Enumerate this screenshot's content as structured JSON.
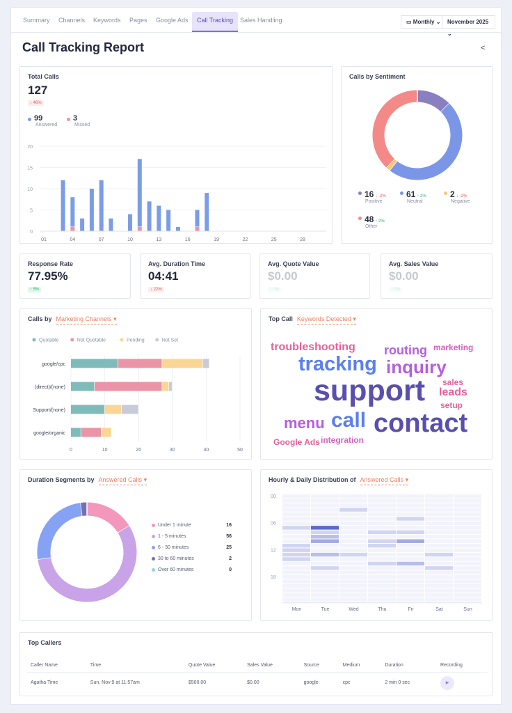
{
  "nav": {
    "tabs": [
      "Summary",
      "Channels",
      "Keywords",
      "Pages",
      "Google Ads",
      "Call Tracking",
      "Sales Handling"
    ],
    "active": 5,
    "period": "Monthly",
    "month": "November 2025"
  },
  "page": {
    "title": "Call Tracking Report"
  },
  "total_calls": {
    "title": "Total Calls",
    "value": "127",
    "change": "↓ 46%",
    "answered": {
      "value": "99",
      "label": "Answered"
    },
    "missed": {
      "value": "3",
      "label": "Missed"
    }
  },
  "sentiment": {
    "title": "Calls by Sentiment",
    "items": [
      {
        "label": "Positive",
        "value": 16,
        "change": "↓ -2%",
        "dir": "down",
        "color": "#8a7fbf"
      },
      {
        "label": "Neutral",
        "value": 61,
        "change": "↑ 2%",
        "dir": "up",
        "color": "#7b96e6"
      },
      {
        "label": "Negative",
        "value": 2,
        "change": "↓ -2%",
        "dir": "down",
        "color": "#f5c97a"
      },
      {
        "label": "Other",
        "value": 48,
        "change": "↑ 2%",
        "dir": "up",
        "color": "#f48a87"
      }
    ]
  },
  "stats": [
    {
      "label": "Response Rate",
      "value": "77.95%",
      "change": "↑ 5%",
      "dir": "up"
    },
    {
      "label": "Avg. Duration Time",
      "value": "04:41",
      "change": "↓ 22%",
      "dir": "down"
    },
    {
      "label": "Avg. Quote Value",
      "value": "$0.00",
      "change": "↑ 0%",
      "dir": "up"
    },
    {
      "label": "Avg. Sales Value",
      "value": "$0.00",
      "change": "↑ 0%",
      "dir": "up"
    }
  ],
  "calls_by": {
    "title": "Calls by",
    "dropdown": "Marketing Channels"
  },
  "top_call": {
    "title": "Top Call",
    "dropdown": "Keywords Detected",
    "words": [
      {
        "text": "troubleshooting",
        "weight": 2,
        "color": "#e8609a"
      },
      {
        "text": "routing",
        "weight": 2.3,
        "color": "#b45fe0"
      },
      {
        "text": "marketing",
        "weight": 1.5,
        "color": "#d95fc0"
      },
      {
        "text": "tracking",
        "weight": 3.6,
        "color": "#5a7ff0"
      },
      {
        "text": "inquiry",
        "weight": 3.2,
        "color": "#b45fe0"
      },
      {
        "text": "support",
        "weight": 5.4,
        "color": "#5a4fb0"
      },
      {
        "text": "sales",
        "weight": 1.5,
        "color": "#e8609a"
      },
      {
        "text": "leads",
        "weight": 2,
        "color": "#e8609a"
      },
      {
        "text": "setup",
        "weight": 1.5,
        "color": "#e8609a"
      },
      {
        "text": "menu",
        "weight": 2.8,
        "color": "#b45fe0"
      },
      {
        "text": "call",
        "weight": 3.8,
        "color": "#5a7ff0"
      },
      {
        "text": "contact",
        "weight": 4.8,
        "color": "#5a4fb0"
      },
      {
        "text": "Google Ads",
        "weight": 1.5,
        "color": "#e8609a"
      },
      {
        "text": "integration",
        "weight": 1.5,
        "color": "#d95fc0"
      }
    ]
  },
  "duration": {
    "title": "Duration Segments by",
    "dropdown": "Answered Calls",
    "items": [
      {
        "label": "Under 1 minute",
        "value": 16,
        "color": "#f497bd"
      },
      {
        "label": "1 - 5 minutes",
        "value": 56,
        "color": "#c9a3e8"
      },
      {
        "label": "6 - 30 minutes",
        "value": 25,
        "color": "#86a2f5"
      },
      {
        "label": "30 to 60 minutes",
        "value": 2,
        "color": "#7a6fad"
      },
      {
        "label": "Over 60 minutes",
        "value": 0,
        "color": "#8fd3ea"
      }
    ]
  },
  "hourly": {
    "title": "Hourly & Daily Distribution of",
    "dropdown": "Answered Calls"
  },
  "top_callers": {
    "title": "Top Callers",
    "columns": [
      "Caller Name",
      "Time",
      "Quote Value",
      "Sales Value",
      "Source",
      "Medium",
      "Duration",
      "Recording"
    ],
    "rows": [
      [
        "Agatha Time",
        "Sun, Nov 9 at 11:57am",
        "$500.00",
        "$0.00",
        "google",
        "cpc",
        "2 min 0 sec"
      ]
    ]
  },
  "chart_data": [
    {
      "type": "bar",
      "stacked": true,
      "ylim": [
        0,
        20
      ],
      "yticks": [
        0,
        5,
        10,
        15,
        20
      ],
      "xticks": [
        "01",
        "04",
        "07",
        "10",
        "13",
        "16",
        "19",
        "22",
        "25",
        "28"
      ],
      "x": [
        1,
        2,
        3,
        4,
        5,
        6,
        7,
        8,
        9,
        10,
        11,
        12,
        13,
        14,
        15,
        16,
        17,
        18,
        19,
        20,
        21,
        22,
        23,
        24,
        25,
        26,
        27,
        28,
        29,
        30
      ],
      "series": [
        {
          "name": "Answered",
          "color": "#7b9de8",
          "values": [
            0,
            0,
            12,
            7,
            3,
            10,
            12,
            3,
            0,
            4,
            16,
            7,
            6,
            5,
            1,
            0,
            4,
            9,
            0,
            0,
            0,
            0,
            0,
            0,
            0,
            0,
            0,
            0,
            0,
            0
          ]
        },
        {
          "name": "Missed",
          "color": "#f093a8",
          "values": [
            0,
            0,
            0,
            1,
            0,
            0,
            0,
            0,
            0,
            0,
            1,
            0,
            0,
            0,
            0,
            0,
            1,
            0,
            0,
            0,
            0,
            0,
            0,
            0,
            0,
            0,
            0,
            0,
            0,
            0
          ]
        }
      ]
    },
    {
      "type": "bar",
      "orientation": "horizontal",
      "stacked": true,
      "xlim": [
        0,
        50
      ],
      "xticks": [
        0,
        10,
        20,
        30,
        40,
        50
      ],
      "categories": [
        "google/cpc",
        "(direct)/(none)",
        "Support/(none)",
        "google/organic"
      ],
      "legend": "top",
      "series": [
        {
          "name": "Quotable",
          "color": "#7fbcb9",
          "values": [
            14,
            7,
            10,
            3
          ]
        },
        {
          "name": "Not Quotable",
          "color": "#ea94a8",
          "values": [
            13,
            20,
            0,
            6
          ]
        },
        {
          "name": "Pending",
          "color": "#fad694",
          "values": [
            12,
            2,
            5,
            3
          ]
        },
        {
          "name": "Not Set",
          "color": "#c9ccd8",
          "values": [
            2,
            1,
            5,
            0
          ]
        }
      ]
    },
    {
      "type": "heatmap",
      "x": [
        "Mon",
        "Tue",
        "Wed",
        "Thu",
        "Fri",
        "Sat",
        "Sun"
      ],
      "yticks": [
        "00",
        "06",
        "12",
        "18"
      ],
      "hours": 24,
      "cells": [
        [
          0,
          7,
          1
        ],
        [
          0,
          11,
          1
        ],
        [
          0,
          12,
          1
        ],
        [
          0,
          13,
          1
        ],
        [
          0,
          14,
          1
        ],
        [
          1,
          7,
          6
        ],
        [
          1,
          8,
          1
        ],
        [
          1,
          9,
          2
        ],
        [
          1,
          10,
          3
        ],
        [
          1,
          13,
          2
        ],
        [
          1,
          16,
          1
        ],
        [
          2,
          3,
          1
        ],
        [
          2,
          13,
          1
        ],
        [
          3,
          8,
          1
        ],
        [
          3,
          10,
          1
        ],
        [
          3,
          11,
          1
        ],
        [
          3,
          15,
          1
        ],
        [
          4,
          5,
          1
        ],
        [
          4,
          8,
          1
        ],
        [
          4,
          10,
          3
        ],
        [
          4,
          15,
          2
        ],
        [
          5,
          13,
          1
        ],
        [
          5,
          16,
          1
        ]
      ]
    }
  ]
}
